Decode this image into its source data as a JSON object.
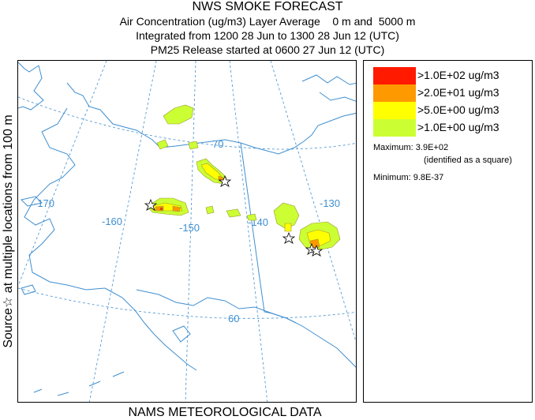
{
  "title": {
    "line1": "NWS SMOKE FORECAST",
    "line2": "Air Concentration (ug/m3) Layer Average    0 m and  5000 m",
    "line3": "Integrated from 1200 28 Jun to 1300 28 Jun 12 (UTC)",
    "line4": "PM25 Release started at 0600 27 Jun 12 (UTC)"
  },
  "side_label": "Source☆ at multiple locations     from   100 m",
  "bottom_label": "NAMS METEOROLOGICAL DATA",
  "map": {
    "longitude_labels": [
      "-170",
      "-160",
      "-150",
      "-140",
      "-130"
    ],
    "latitude_labels": [
      "70",
      "60"
    ],
    "colors": {
      "coast": "#3f8fd0",
      "grid": "#3f8fd0"
    }
  },
  "legend": {
    "items": [
      {
        "label": ">1.0E+02 ug/m3",
        "color": "#ff1a00"
      },
      {
        "label": ">2.0E+01 ug/m3",
        "color": "#ff9900"
      },
      {
        "label": ">5.0E+00 ug/m3",
        "color": "#ffff00"
      },
      {
        "label": ">1.0E+00 ug/m3",
        "color": "#ccff33"
      }
    ],
    "maximum": "Maximum: 3.9E+02",
    "maximum_note": "(identified as a square)",
    "minimum": "Minimum: 9.8E-37"
  }
}
